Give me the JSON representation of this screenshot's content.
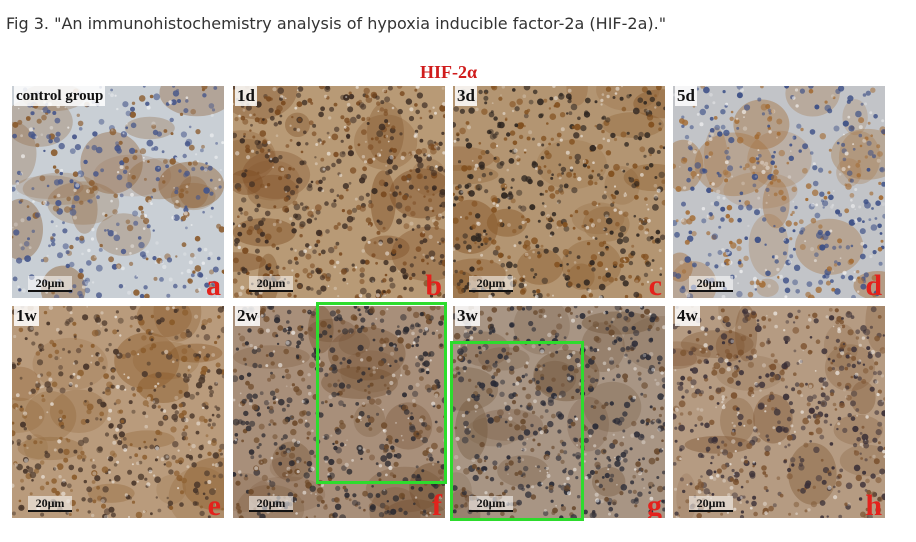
{
  "caption": "Fig 3. \"An immunohistochemistry analysis of hypoxia inducible factor-2a (HIF-2a).\"",
  "figure": {
    "title": "HIF-2α",
    "panels": [
      {
        "tag": "control group",
        "letter": "a",
        "scale": "20μm",
        "base": "#c9cfd5",
        "dark": "#46568a",
        "brown": "#8a5a2c",
        "density": 0.35
      },
      {
        "tag": "1d",
        "letter": "b",
        "scale": "20μm",
        "base": "#b89a76",
        "dark": "#3b2b22",
        "brown": "#7a4a20",
        "density": 0.75
      },
      {
        "tag": "3d",
        "letter": "c",
        "scale": "20μm",
        "base": "#b39572",
        "dark": "#2f2620",
        "brown": "#82501f",
        "density": 0.7
      },
      {
        "tag": "5d",
        "letter": "d",
        "scale": "20μm",
        "base": "#c2c4c8",
        "dark": "#3c4f86",
        "brown": "#a36c35",
        "density": 0.45
      },
      {
        "tag": "1w",
        "letter": "e",
        "scale": "20μm",
        "base": "#b99b7c",
        "dark": "#49362a",
        "brown": "#8a5b2b",
        "density": 0.6
      },
      {
        "tag": "2w",
        "letter": "f",
        "scale": "20μm",
        "base": "#a88f7a",
        "dark": "#2c2a30",
        "brown": "#6e4a2a",
        "density": 0.8
      },
      {
        "tag": "3w",
        "letter": "g",
        "scale": "20μm",
        "base": "#a89584",
        "dark": "#2a2b36",
        "brown": "#6a4b30",
        "density": 0.8
      },
      {
        "tag": "4w",
        "letter": "h",
        "scale": "20μm",
        "base": "#b59b82",
        "dark": "#3b3037",
        "brown": "#7c5330",
        "density": 0.7
      }
    ],
    "highlight_color": "#2ddc2d"
  }
}
